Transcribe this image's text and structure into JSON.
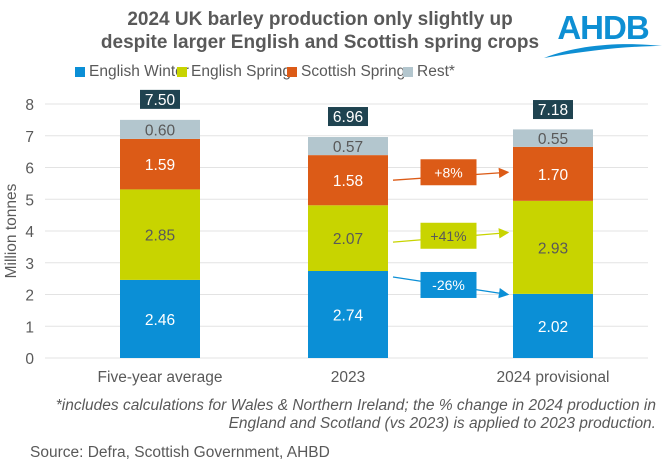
{
  "title": {
    "line1": "2024 UK barley production only slightly up",
    "line2": "despite larger English and Scottish spring crops"
  },
  "logo": {
    "text": "AHDB",
    "color": "#0e8fd3"
  },
  "legend": [
    {
      "label": "English Winter",
      "color": "#0b8fd6"
    },
    {
      "label": "English Spring",
      "color": "#c8d400"
    },
    {
      "label": "Scottish Spring",
      "color": "#dc5b17"
    },
    {
      "label": "Rest*",
      "color": "#b3c6ce"
    }
  ],
  "chart_data": {
    "type": "bar",
    "stacked": true,
    "title": "2024 UK barley production only slightly up despite larger English and Scottish spring crops",
    "xlabel": "",
    "ylabel": "Million tonnes",
    "ylim": [
      0,
      8
    ],
    "yticks": [
      0,
      1,
      2,
      3,
      4,
      5,
      6,
      7,
      8
    ],
    "grid": true,
    "legend_position": "top",
    "categories": [
      "Five-year average",
      "2023",
      "2024 provisional"
    ],
    "series": [
      {
        "name": "English Winter",
        "color": "#0b8fd6",
        "label_color": "#ffffff",
        "values": [
          2.46,
          2.74,
          2.02
        ]
      },
      {
        "name": "English Spring",
        "color": "#c8d400",
        "label_color": "#595959",
        "values": [
          2.85,
          2.07,
          2.93
        ]
      },
      {
        "name": "Scottish Spring",
        "color": "#dc5b17",
        "label_color": "#ffffff",
        "values": [
          1.59,
          1.58,
          1.7
        ]
      },
      {
        "name": "Rest*",
        "color": "#b3c6ce",
        "label_color": "#595959",
        "values": [
          0.6,
          0.57,
          0.55
        ]
      }
    ],
    "segment_labels": [
      [
        "2.46",
        "2.74",
        "2.02"
      ],
      [
        "2.85",
        "2.07",
        "2.93"
      ],
      [
        "1.59",
        "1.58",
        "1.70"
      ],
      [
        "0.60",
        "0.57",
        "0.55"
      ]
    ],
    "totals": [
      7.5,
      6.96,
      7.18
    ],
    "total_labels": [
      "7.50",
      "6.96",
      "7.18"
    ],
    "total_label_color": "#1f4350",
    "annotations": [
      {
        "series": "Scottish Spring",
        "text": "+8%",
        "color": "#dc5b17",
        "text_color": "#ffffff",
        "from_y": 5.6,
        "to_y": 5.85,
        "label_y": 5.85
      },
      {
        "series": "English Spring",
        "text": "+41%",
        "color": "#c8d400",
        "text_color": "#595959",
        "from_y": 3.65,
        "to_y": 3.95,
        "label_y": 3.85
      },
      {
        "series": "English Winter",
        "text": "-26%",
        "color": "#0b8fd6",
        "text_color": "#ffffff",
        "from_y": 2.55,
        "to_y": 2.0,
        "label_y": 2.3
      }
    ]
  },
  "footnote": {
    "line1": "*includes calculations for Wales & Northern Ireland; the % change in 2024 production in",
    "line2": "England and Scotland (vs 2023) is applied to 2023 production."
  },
  "source": "Source: Defra, Scottish Government, AHBD"
}
